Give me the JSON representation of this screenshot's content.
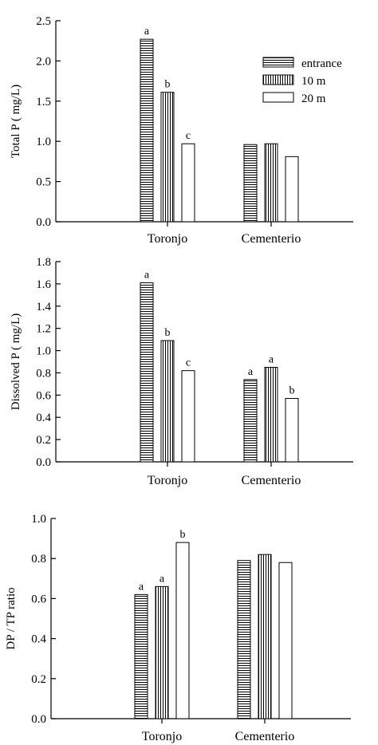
{
  "legend": {
    "entries": [
      {
        "name": "entrance",
        "pattern": "horizontal"
      },
      {
        "name": "10 m",
        "pattern": "vertical"
      },
      {
        "name": "20 m",
        "pattern": "none"
      }
    ],
    "position": "top-right"
  },
  "chart_data": [
    {
      "type": "bar",
      "ylabel": "Total P ( mg/L)",
      "ylim": [
        0,
        2.5
      ],
      "yticks": [
        "0.0",
        "0.5",
        "1.0",
        "1.5",
        "2.0",
        "2.5"
      ],
      "categories": [
        "Toronjo",
        "Cementerio"
      ],
      "series": [
        {
          "name": "entrance",
          "values": [
            2.27,
            0.96
          ],
          "labels": [
            "a",
            ""
          ]
        },
        {
          "name": "10 m",
          "values": [
            1.61,
            0.97
          ],
          "labels": [
            "b",
            ""
          ]
        },
        {
          "name": "20 m",
          "values": [
            0.97,
            0.81
          ],
          "labels": [
            "c",
            ""
          ]
        }
      ],
      "legend": true
    },
    {
      "type": "bar",
      "ylabel": "Dissolved P ( mg/L)",
      "ylim": [
        0,
        1.8
      ],
      "yticks": [
        "0.0",
        "0.2",
        "0.4",
        "0.6",
        "0.8",
        "1.0",
        "1.2",
        "1.4",
        "1.6",
        "1.8"
      ],
      "categories": [
        "Toronjo",
        "Cementerio"
      ],
      "series": [
        {
          "name": "entrance",
          "values": [
            1.61,
            0.74
          ],
          "labels": [
            "a",
            "a"
          ]
        },
        {
          "name": "10 m",
          "values": [
            1.09,
            0.85
          ],
          "labels": [
            "b",
            "a"
          ]
        },
        {
          "name": "20 m",
          "values": [
            0.82,
            0.57
          ],
          "labels": [
            "c",
            "b"
          ]
        }
      ],
      "legend": false
    },
    {
      "type": "bar",
      "ylabel": "DP / TP ratio",
      "ylim": [
        0,
        1.0
      ],
      "yticks": [
        "0.0",
        "0.2",
        "0.4",
        "0.6",
        "0.8",
        "1.0"
      ],
      "categories": [
        "Toronjo",
        "Cementerio"
      ],
      "series": [
        {
          "name": "entrance",
          "values": [
            0.62,
            0.79
          ],
          "labels": [
            "a",
            ""
          ]
        },
        {
          "name": "10 m",
          "values": [
            0.66,
            0.82
          ],
          "labels": [
            "a",
            ""
          ]
        },
        {
          "name": "20 m",
          "values": [
            0.88,
            0.78
          ],
          "labels": [
            "b",
            ""
          ]
        }
      ],
      "legend": false
    }
  ]
}
